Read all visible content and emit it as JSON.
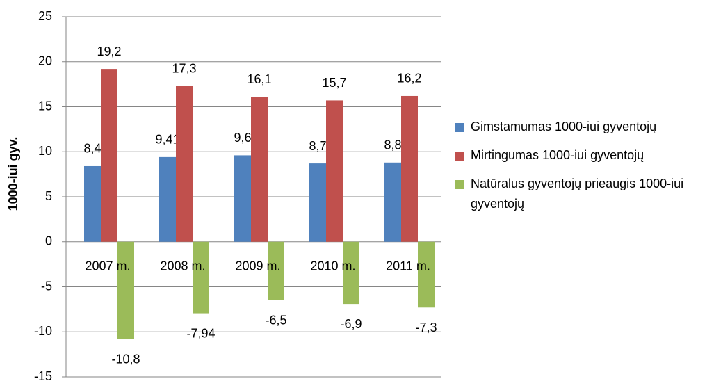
{
  "chart_data": {
    "type": "bar",
    "y_label": "1000-iui gyv.",
    "categories": [
      "2007 m.",
      "2008 m.",
      "2009 m.",
      "2010 m.",
      "2011 m."
    ],
    "series": [
      {
        "name": "Gimstamumas 1000-iui gyventojų",
        "color": "#4f81bd",
        "values": [
          8.4,
          9.41,
          9.6,
          8.7,
          8.8
        ],
        "value_labels": [
          "8,4",
          "9,41",
          "9,6",
          "8,7",
          "8,8"
        ]
      },
      {
        "name": "Mirtingumas 1000-iui gyventojų",
        "color": "#c0504d",
        "values": [
          19.2,
          17.3,
          16.1,
          15.7,
          16.2
        ],
        "value_labels": [
          "19,2",
          "17,3",
          "16,1",
          "15,7",
          "16,2"
        ]
      },
      {
        "name": "Natūralus gyventojų prieaugis 1000-iui gyventojų",
        "color": "#9bbb59",
        "values": [
          -10.8,
          -7.94,
          -6.5,
          -6.9,
          -7.3
        ],
        "value_labels": [
          "-10,8",
          "-7,94",
          "-6,5",
          "-6,9",
          "-7,3"
        ]
      }
    ],
    "ylim": [
      -15,
      25
    ],
    "yticks": [
      -15,
      -10,
      -5,
      0,
      5,
      10,
      15,
      20,
      25
    ],
    "grid": true,
    "legend": "right"
  }
}
